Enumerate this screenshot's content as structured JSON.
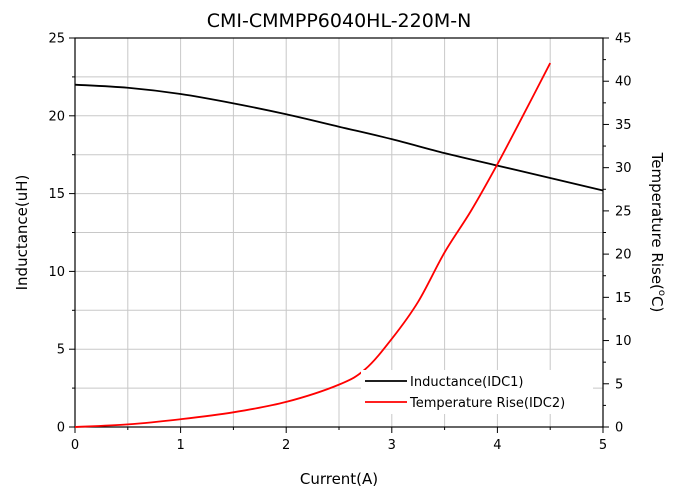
{
  "chart_data": {
    "type": "line",
    "title": "CMI-CMMPP6040HL-220M-N",
    "xlabel": "Current(A)",
    "ylabel_left": "Inductance(uH)",
    "ylabel_right": "Temperature Rise(",
    "ylabel_right_unit": "°C)",
    "ylabel_right_degree": "o",
    "ylabel_right_C": "C)",
    "xlim": [
      0,
      5
    ],
    "ylim_left": [
      0,
      25
    ],
    "ylim_right": [
      0,
      45
    ],
    "x_ticks": [
      "0",
      "1",
      "2",
      "3",
      "4",
      "5"
    ],
    "y_left_ticks": [
      "0",
      "5",
      "10",
      "15",
      "20",
      "25"
    ],
    "y_right_ticks": [
      "0",
      "5",
      "10",
      "15",
      "20",
      "25",
      "30",
      "35",
      "40",
      "45"
    ],
    "grid": true,
    "legend_position": "bottom-right",
    "series": [
      {
        "name": "Inductance(IDC1)",
        "axis": "left",
        "color": "#000000",
        "x": [
          0,
          0.5,
          1,
          1.5,
          2,
          2.5,
          3,
          3.5,
          4,
          4.5,
          5
        ],
        "y": [
          22.0,
          21.8,
          21.4,
          20.8,
          20.1,
          19.3,
          18.5,
          17.6,
          16.8,
          16.0,
          15.2
        ]
      },
      {
        "name": "Temperature Rise(IDC2)",
        "axis": "right",
        "color": "#ff0000",
        "x": [
          0,
          0.5,
          1,
          1.5,
          2,
          2.5,
          2.75,
          3,
          3.25,
          3.5,
          3.75,
          4,
          4.25,
          4.5
        ],
        "y": [
          0,
          0.3,
          0.9,
          1.7,
          2.9,
          4.9,
          6.7,
          10.2,
          14.5,
          20.2,
          25.0,
          30.4,
          36.2,
          42.1
        ]
      }
    ]
  }
}
